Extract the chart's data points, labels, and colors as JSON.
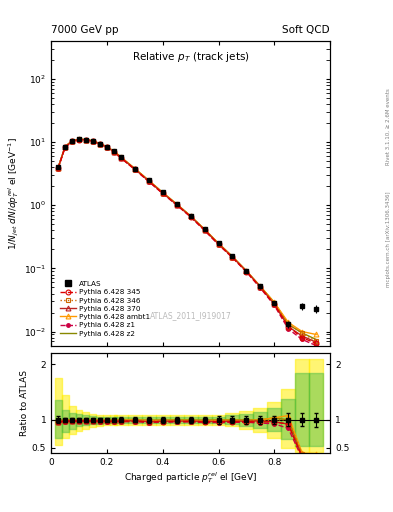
{
  "title_left": "7000 GeV pp",
  "title_right": "Soft QCD",
  "main_title": "Relative $p_T$ (track jets)",
  "ylabel_main": "$1/N_{jet}$ $dN/dp^{rel}_{T}$ el [GeV$^{-1}$]",
  "ylabel_ratio": "Ratio to ATLAS",
  "xlabel": "Charged particle $p^{rel}_{T}$ el [GeV]",
  "watermark": "ATLAS_2011_I919017",
  "right_label_top": "Rivet 3.1.10, ≥ 2.6M events",
  "right_label_bot": "mcplots.cern.ch [arXiv:1306.3436]",
  "xdata": [
    0.025,
    0.05,
    0.075,
    0.1,
    0.125,
    0.15,
    0.175,
    0.2,
    0.225,
    0.25,
    0.3,
    0.35,
    0.4,
    0.45,
    0.5,
    0.55,
    0.6,
    0.65,
    0.7,
    0.75,
    0.8,
    0.85,
    0.9,
    0.95
  ],
  "atlas_y": [
    4.0,
    8.5,
    10.5,
    11.2,
    11.0,
    10.5,
    9.5,
    8.5,
    7.2,
    5.8,
    3.8,
    2.5,
    1.6,
    1.05,
    0.68,
    0.42,
    0.25,
    0.155,
    0.092,
    0.052,
    0.028,
    0.013,
    0.025,
    0.023
  ],
  "atlas_yerr": [
    0.25,
    0.35,
    0.4,
    0.45,
    0.45,
    0.4,
    0.35,
    0.35,
    0.3,
    0.25,
    0.18,
    0.12,
    0.08,
    0.055,
    0.04,
    0.025,
    0.018,
    0.01,
    0.007,
    0.004,
    0.002,
    0.0015,
    0.003,
    0.003
  ],
  "py345_y": [
    3.85,
    8.3,
    10.3,
    11.0,
    10.8,
    10.3,
    9.3,
    8.3,
    7.0,
    5.65,
    3.72,
    2.4,
    1.55,
    1.02,
    0.66,
    0.405,
    0.242,
    0.15,
    0.089,
    0.05,
    0.027,
    0.012,
    0.008,
    0.0065
  ],
  "py346_y": [
    3.9,
    8.4,
    10.4,
    11.1,
    10.9,
    10.4,
    9.4,
    8.4,
    7.1,
    5.72,
    3.76,
    2.44,
    1.57,
    1.03,
    0.67,
    0.41,
    0.245,
    0.152,
    0.09,
    0.051,
    0.028,
    0.013,
    0.0095,
    0.007
  ],
  "py370_y": [
    3.88,
    8.35,
    10.35,
    11.05,
    10.85,
    10.35,
    9.35,
    8.35,
    7.05,
    5.68,
    3.74,
    2.42,
    1.56,
    1.025,
    0.665,
    0.408,
    0.243,
    0.151,
    0.09,
    0.051,
    0.027,
    0.012,
    0.0085,
    0.0068
  ],
  "pyambt1_y": [
    3.92,
    8.45,
    10.45,
    11.15,
    10.95,
    10.45,
    9.45,
    8.45,
    7.15,
    5.78,
    3.8,
    2.47,
    1.59,
    1.04,
    0.675,
    0.415,
    0.248,
    0.154,
    0.091,
    0.052,
    0.029,
    0.014,
    0.01,
    0.009
  ],
  "pyz1_y": [
    3.82,
    8.2,
    10.2,
    10.95,
    10.75,
    10.2,
    9.2,
    8.2,
    6.95,
    5.6,
    3.68,
    2.38,
    1.53,
    1.01,
    0.655,
    0.4,
    0.238,
    0.148,
    0.088,
    0.049,
    0.026,
    0.011,
    0.0075,
    0.006
  ],
  "pyz2_y": [
    3.95,
    8.5,
    10.5,
    11.2,
    11.0,
    10.5,
    9.5,
    8.5,
    7.2,
    5.82,
    3.83,
    2.48,
    1.6,
    1.05,
    0.68,
    0.418,
    0.25,
    0.155,
    0.092,
    0.052,
    0.029,
    0.013,
    0.0095,
    0.0075
  ],
  "colors": {
    "atlas": "#000000",
    "py345": "#dd0000",
    "py346": "#cc6600",
    "py370": "#bb2222",
    "pyambt1": "#ff9900",
    "pyz1": "#cc0044",
    "pyz2": "#888800"
  },
  "band_yellow_upper": [
    1.75,
    1.45,
    1.25,
    1.18,
    1.14,
    1.11,
    1.09,
    1.09,
    1.09,
    1.09,
    1.09,
    1.09,
    1.09,
    1.09,
    1.09,
    1.09,
    1.09,
    1.12,
    1.16,
    1.22,
    1.32,
    1.55,
    2.1,
    2.1
  ],
  "band_yellow_lower": [
    0.55,
    0.68,
    0.74,
    0.8,
    0.84,
    0.87,
    0.89,
    0.9,
    0.9,
    0.9,
    0.9,
    0.9,
    0.9,
    0.9,
    0.9,
    0.9,
    0.9,
    0.88,
    0.84,
    0.78,
    0.68,
    0.5,
    0.42,
    0.42
  ],
  "band_green_upper": [
    1.35,
    1.18,
    1.13,
    1.1,
    1.08,
    1.07,
    1.06,
    1.06,
    1.06,
    1.06,
    1.06,
    1.06,
    1.06,
    1.06,
    1.06,
    1.06,
    1.06,
    1.08,
    1.11,
    1.15,
    1.22,
    1.38,
    1.85,
    1.85
  ],
  "band_green_lower": [
    0.68,
    0.78,
    0.84,
    0.88,
    0.91,
    0.92,
    0.93,
    0.94,
    0.94,
    0.94,
    0.94,
    0.94,
    0.94,
    0.94,
    0.94,
    0.94,
    0.94,
    0.92,
    0.89,
    0.86,
    0.8,
    0.66,
    0.52,
    0.52
  ],
  "xlim": [
    0.0,
    1.0
  ],
  "ylim_main": [
    0.006,
    400
  ],
  "ylim_ratio": [
    0.4,
    2.2
  ]
}
